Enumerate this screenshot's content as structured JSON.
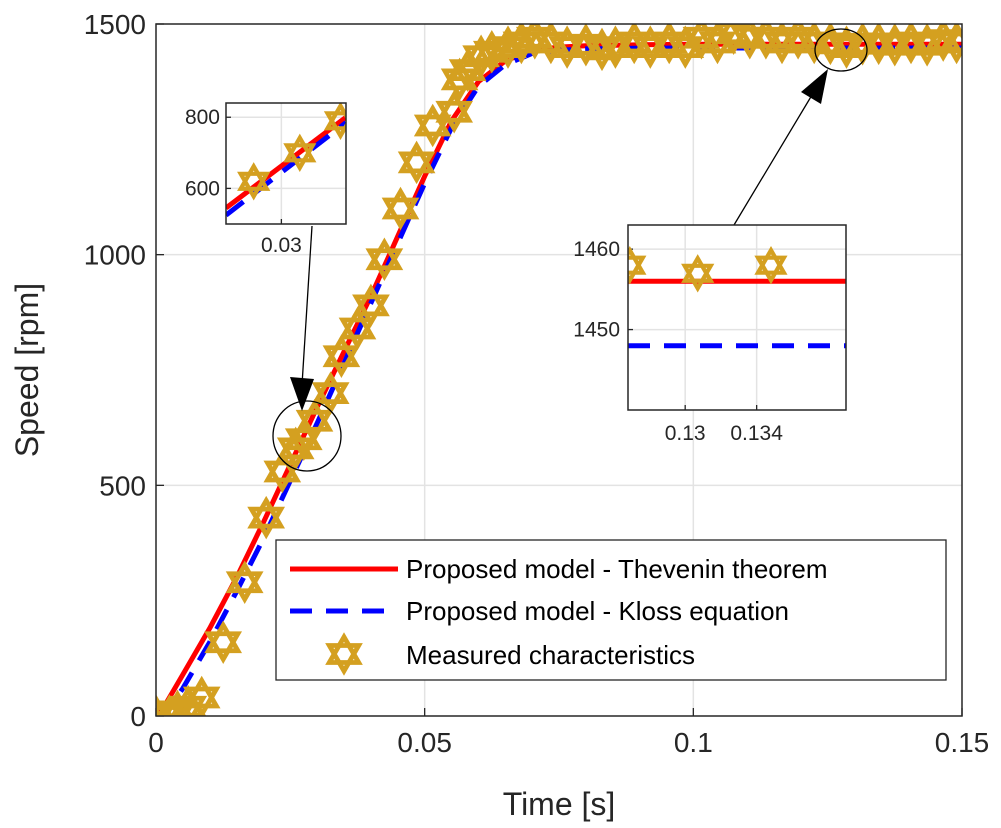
{
  "chart_data": [
    {
      "type": "line",
      "xlabel": "Time [s]",
      "ylabel": "Speed [rpm]",
      "xlim": [
        0,
        0.15
      ],
      "ylim": [
        0,
        1500
      ],
      "xticks": [
        0,
        0.05,
        0.1,
        0.15
      ],
      "xtick_labels": [
        "0",
        "0.05",
        "0.1",
        "0.15"
      ],
      "yticks": [
        0,
        500,
        1000,
        1500
      ],
      "ytick_labels": [
        "0",
        "500",
        "1000",
        "1500"
      ],
      "grid": true,
      "legend_placement": "bottom-right",
      "series": [
        {
          "name": "Proposed model - Thevenin theorem",
          "style": "solid",
          "color": "#ff0000",
          "x": [
            0,
            0.002,
            0.005,
            0.01,
            0.015,
            0.02,
            0.025,
            0.03,
            0.035,
            0.04,
            0.045,
            0.05,
            0.055,
            0.06,
            0.065,
            0.07,
            0.075,
            0.08,
            0.09,
            0.1,
            0.11,
            0.12,
            0.13,
            0.14,
            0.15
          ],
          "y": [
            0,
            30,
            90,
            190,
            300,
            420,
            545,
            670,
            790,
            910,
            1040,
            1170,
            1290,
            1375,
            1420,
            1443,
            1450,
            1453,
            1455,
            1456,
            1456,
            1456,
            1456,
            1456,
            1456
          ]
        },
        {
          "name": "Proposed model - Kloss equation",
          "style": "dashed",
          "color": "#0000ff",
          "x": [
            0,
            0.002,
            0.005,
            0.01,
            0.015,
            0.02,
            0.025,
            0.03,
            0.035,
            0.04,
            0.045,
            0.05,
            0.055,
            0.06,
            0.065,
            0.07,
            0.075,
            0.08,
            0.09,
            0.1,
            0.11,
            0.12,
            0.13,
            0.14,
            0.15
          ],
          "y": [
            0,
            10,
            60,
            160,
            270,
            385,
            510,
            635,
            765,
            895,
            1025,
            1155,
            1275,
            1365,
            1412,
            1436,
            1443,
            1446,
            1447.5,
            1448,
            1448,
            1448,
            1448,
            1448,
            1448
          ]
        },
        {
          "name": "Measured characteristics",
          "style": "markers",
          "marker": "hexagram",
          "color": "#d4a020",
          "x": [
            0,
            0.0025,
            0.004,
            0.006,
            0.0085,
            0.0125,
            0.0165,
            0.0205,
            0.0235,
            0.026,
            0.0275,
            0.0295,
            0.0325,
            0.0345,
            0.0375,
            0.04,
            0.0425,
            0.0455,
            0.0485,
            0.0515,
            0.0555,
            0.0565,
            0.058,
            0.0605,
            0.0625,
            0.0655,
            0.068,
            0.0705,
            0.0735,
            0.0765,
            0.08,
            0.083,
            0.0855,
            0.089,
            0.092,
            0.0955,
            0.0985,
            0.1015,
            0.1045,
            0.1075,
            0.1105,
            0.1135,
            0.1165,
            0.1195,
            0.1225,
            0.1255,
            0.1285,
            0.1315,
            0.1345,
            0.1375,
            0.1405,
            0.1435,
            0.1465,
            0.149
          ],
          "y": [
            0,
            0,
            10,
            20,
            40,
            160,
            290,
            430,
            530,
            580,
            600,
            640,
            700,
            780,
            840,
            890,
            990,
            1100,
            1200,
            1280,
            1310,
            1380,
            1400,
            1430,
            1440,
            1450,
            1460,
            1470,
            1460,
            1450,
            1455,
            1445,
            1450,
            1460,
            1450,
            1460,
            1450,
            1470,
            1460,
            1480,
            1470,
            1470,
            1460,
            1470,
            1460,
            1458,
            1450,
            1457,
            1458,
            1455,
            1460,
            1455,
            1465,
            1460
          ]
        }
      ]
    },
    {
      "type": "line",
      "role": "inset",
      "xlim": [
        0.027,
        0.0335
      ],
      "ylim": [
        500,
        840
      ],
      "xticks": [
        0.03
      ],
      "xtick_labels": [
        "0.03"
      ],
      "yticks": [
        600,
        800
      ],
      "ytick_labels": [
        "600",
        "800"
      ],
      "grid": true,
      "series": [
        {
          "name": "Proposed model - Thevenin theorem",
          "x": [
            0.027,
            0.0335
          ],
          "y": [
            545,
            800
          ]
        },
        {
          "name": "Proposed model - Kloss equation",
          "x": [
            0.027,
            0.0335
          ],
          "y": [
            525,
            785
          ]
        },
        {
          "name": "Measured characteristics",
          "x": [
            0.0285,
            0.031,
            0.0332
          ],
          "y": [
            620,
            700,
            790
          ]
        }
      ]
    },
    {
      "type": "line",
      "role": "inset",
      "xlim": [
        0.1268,
        0.139
      ],
      "ylim": [
        1440,
        1463
      ],
      "xticks": [
        0.13,
        0.134
      ],
      "xtick_labels": [
        "0.13",
        "0.134"
      ],
      "yticks": [
        1450,
        1460
      ],
      "ytick_labels": [
        "1450",
        "1460"
      ],
      "grid": true,
      "series": [
        {
          "name": "Proposed model - Thevenin theorem",
          "x": [
            0.1268,
            0.139
          ],
          "y": [
            1456,
            1456
          ]
        },
        {
          "name": "Proposed model - Kloss equation",
          "x": [
            0.1268,
            0.139
          ],
          "y": [
            1448,
            1448
          ]
        },
        {
          "name": "Measured characteristics",
          "x": [
            0.1269,
            0.1307,
            0.1348
          ],
          "y": [
            1458,
            1457,
            1458
          ]
        }
      ]
    }
  ]
}
